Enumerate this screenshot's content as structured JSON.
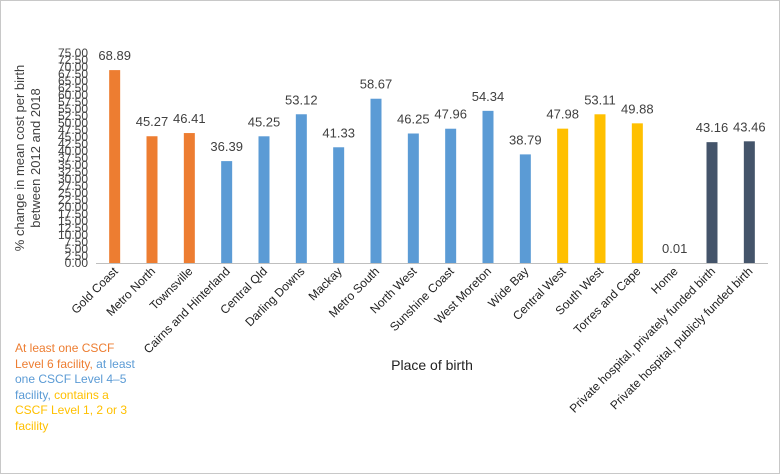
{
  "chart_data": {
    "type": "bar",
    "ylabel": "% change in mean cost per birth between 2012 and 2018",
    "xlabel": "Place of birth",
    "ylim": [
      0,
      75
    ],
    "ytick_step": 2.5,
    "ytick_labels": [
      "0.00",
      "2.50",
      "5.00",
      "7.50",
      "10.00",
      "12.50",
      "15.00",
      "17.50",
      "20.00",
      "22.50",
      "25.00",
      "27.50",
      "30.00",
      "32.50",
      "35.00",
      "37.50",
      "40.00",
      "42.50",
      "45.00",
      "47.50",
      "50.00",
      "52.50",
      "55.00",
      "57.50",
      "60.00",
      "62.50",
      "65.00",
      "67.50",
      "70.00",
      "72.50",
      "75.00"
    ],
    "grid": false,
    "categories": [
      "Gold Coast",
      "Metro North",
      "Townsville",
      "Cairns and Hinterland",
      "Central Qld",
      "Darling Downs",
      "Mackay",
      "Metro South",
      "North West",
      "Sunshine Coast",
      "West Moreton",
      "Wide Bay",
      "Central West",
      "South West",
      "Torres and Cape",
      "Home",
      "Private hospital, privately funded birth",
      "Private hospital, publicly funded birth"
    ],
    "values": [
      68.89,
      45.27,
      46.41,
      36.39,
      45.25,
      53.12,
      41.33,
      58.67,
      46.25,
      47.96,
      54.34,
      38.79,
      47.98,
      53.11,
      49.88,
      0.01,
      43.16,
      43.46
    ],
    "value_labels": [
      "68.89",
      "45.27",
      "46.41",
      "36.39",
      "45.25",
      "53.12",
      "41.33",
      "58.67",
      "46.25",
      "47.96",
      "54.34",
      "38.79",
      "47.98",
      "53.11",
      "49.88",
      "0.01",
      "43.16",
      "43.46"
    ],
    "groups": [
      "level6",
      "level6",
      "level6",
      "level45",
      "level45",
      "level45",
      "level45",
      "level45",
      "level45",
      "level45",
      "level45",
      "level45",
      "level123",
      "level123",
      "level123",
      "home",
      "private",
      "private"
    ],
    "colors": {
      "level6": "#ED7D31",
      "level45": "#5B9BD5",
      "level123": "#FFC000",
      "home": "#5B9BD5",
      "private": "#44546A",
      "axis": "#bfbfbf",
      "text": "#404040"
    }
  },
  "legend": {
    "level6": {
      "text": "At least one CSCF Level 6 facility,",
      "color": "#ED7D31"
    },
    "level45": {
      "text": " at least one CSCF Level 4–5 facility,",
      "color": "#5B9BD5"
    },
    "level123": {
      "text": " contains a CSCF Level 1, 2 or 3 facility",
      "color": "#FFC000"
    }
  }
}
